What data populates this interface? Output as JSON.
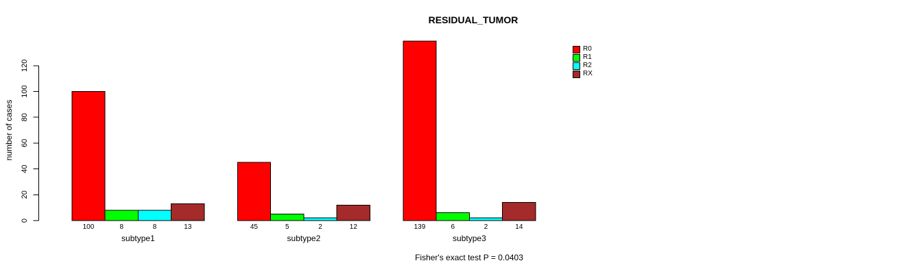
{
  "chart_data": {
    "type": "bar",
    "title": "RESIDUAL_TUMOR",
    "ylabel": "number of cases",
    "categories": [
      "subtype1",
      "subtype2",
      "subtype3"
    ],
    "series": [
      {
        "name": "R0",
        "color": "#FF0000",
        "values": [
          100,
          45,
          139
        ]
      },
      {
        "name": "R1",
        "color": "#00FF00",
        "values": [
          8,
          5,
          6
        ]
      },
      {
        "name": "R2",
        "color": "#00FFFF",
        "values": [
          8,
          2,
          2
        ]
      },
      {
        "name": "RX",
        "color": "#A52A2A",
        "values": [
          13,
          12,
          14
        ]
      }
    ],
    "yticks": [
      0,
      20,
      40,
      60,
      80,
      100,
      120
    ],
    "ylim": [
      0,
      141
    ],
    "grid": false,
    "legend_position": "top-right",
    "bar_value_labels": true,
    "annotation": "Fisher's exact test P = 0.0403",
    "axis_color": "#000000",
    "background_color": "#FFFFFF"
  }
}
